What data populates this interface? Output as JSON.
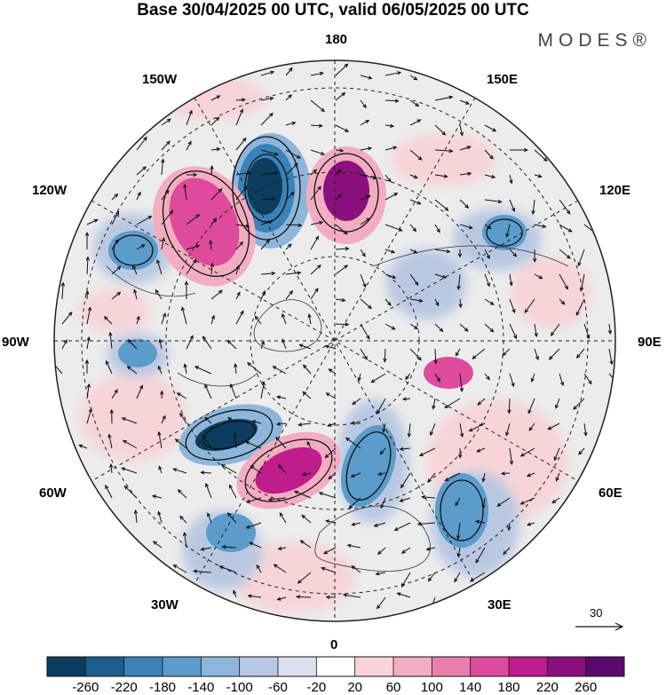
{
  "title": "Base 30/04/2025 00 UTC, valid 06/05/2025 00 UTC",
  "brand": "MODES®",
  "longitude_labels": {
    "deg_180": "180",
    "deg_150e": "150E",
    "deg_120e": "120E",
    "deg_90e": "90E",
    "deg_60e": "60E",
    "deg_30e": "30E",
    "deg_0": "0",
    "deg_30w": "30W",
    "deg_60w": "60W",
    "deg_90w": "90W",
    "deg_120w": "120W",
    "deg_150w": "150W"
  },
  "reference_vector": {
    "label": "30"
  },
  "colorbar": {
    "ticks": [
      "-260",
      "-220",
      "-180",
      "-140",
      "-100",
      "-60",
      "-20",
      "20",
      "60",
      "100",
      "140",
      "180",
      "220",
      "260"
    ],
    "colors": [
      "#0c3d5e",
      "#1a5f8e",
      "#3a82b8",
      "#5b9ccb",
      "#8eb6da",
      "#b9c8e2",
      "#dcdfee",
      "#ffffff",
      "#f6d4d8",
      "#f2aec0",
      "#ea7fae",
      "#de4a9c",
      "#bf1c8c",
      "#8c0f7e",
      "#5a0a6e"
    ]
  },
  "colors": {
    "negative_strong": "#0c3d5e",
    "negative_weak": "#b9c8e2",
    "positive_weak": "#f6d4d8",
    "positive_strong": "#bf1c8c",
    "background_field": "#ececec"
  }
}
